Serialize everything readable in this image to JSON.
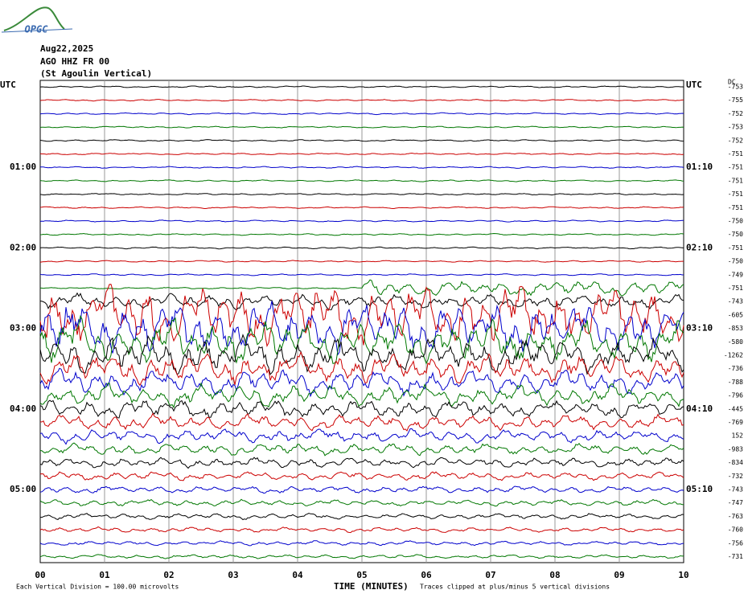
{
  "header": {
    "logo": "OPGC",
    "date": "Aug22,2025",
    "station": "AGO HHZ FR 00",
    "location": "(St Agoulin Vertical)"
  },
  "left_labels": [
    "UTC",
    "01:00",
    "02:00",
    "03:00",
    "04:00",
    "05:00"
  ],
  "right_labels": [
    "UTC",
    "01:10",
    "02:10",
    "03:10",
    "04:10",
    "05:10"
  ],
  "dc_heading": "DC",
  "dc_offsets": [
    "-753",
    "-755",
    "-752",
    "-753",
    "-752",
    "-751",
    "-751",
    "-751",
    "-751",
    "-751",
    "-750",
    "-750",
    "-751",
    "-750",
    "-749",
    "-751",
    "-743",
    "-605",
    "-853",
    "-580",
    "-1262",
    "-736",
    "-788",
    "-796",
    "-445",
    "-769",
    "152",
    "-983",
    "-834",
    "-732",
    "-743",
    "-747",
    "-763",
    "-760",
    "-756",
    "-731"
  ],
  "x_labels": [
    "00",
    "01",
    "02",
    "03",
    "04",
    "05",
    "06",
    "07",
    "08",
    "09",
    "10"
  ],
  "footer": {
    "scale": "Each Vertical Division =  100.00 microvolts",
    "axis_title": "TIME (MINUTES)",
    "clip_note": "Traces clipped at plus/minus 5 vertical divisions"
  }
}
